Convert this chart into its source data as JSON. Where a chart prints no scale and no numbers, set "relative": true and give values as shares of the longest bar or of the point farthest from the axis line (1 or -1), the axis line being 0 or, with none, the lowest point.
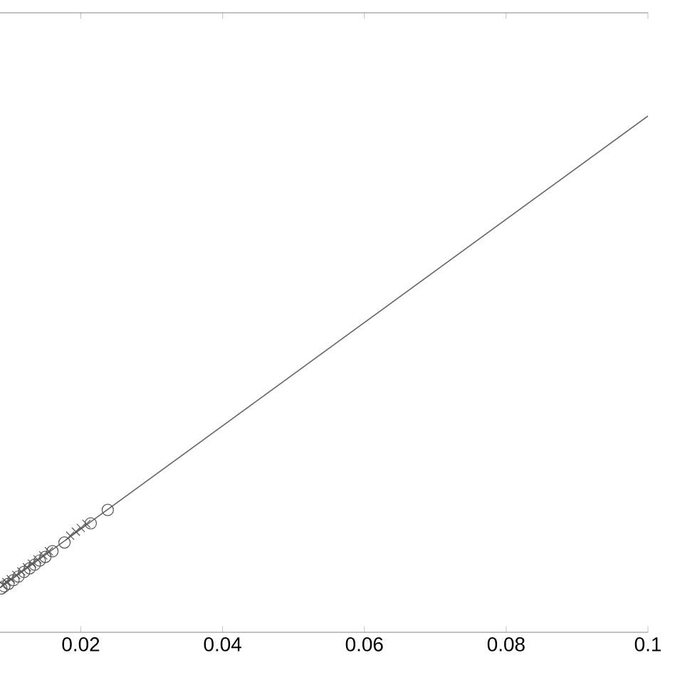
{
  "chart_data": {
    "type": "scatter",
    "relative": true,
    "xlim": [
      0.0086,
      0.1
    ],
    "xticks": [
      0.02,
      0.04,
      0.06,
      0.08,
      0.1
    ],
    "grid": false,
    "tick_labels": "x",
    "series": [
      {
        "type": "line",
        "color": "#666666",
        "line_style": "solid",
        "marker": "none",
        "x": [
          0.0086,
          0.1
        ],
        "values": [
          0.086,
          1
        ]
      },
      {
        "color": "#555555",
        "marker": "circle",
        "x": [
          0.0238,
          0.0214,
          0.0177,
          0.016,
          0.015,
          0.0142,
          0.0135,
          0.0128,
          0.012,
          0.0112,
          0.0105,
          0.0098,
          0.0092,
          0.0088
        ],
        "values": [
          0.237,
          0.211,
          0.174,
          0.157,
          0.146,
          0.139,
          0.131,
          0.124,
          0.117,
          0.108,
          0.101,
          0.094,
          0.089,
          0.085
        ]
      },
      {
        "color": "#555555",
        "marker": "cross",
        "x": [
          0.0208,
          0.02,
          0.0193,
          0.0185,
          0.0155,
          0.0147,
          0.0139,
          0.0131,
          0.0124,
          0.0116,
          0.0109,
          0.0101,
          0.0095,
          0.009
        ],
        "values": [
          0.21,
          0.202,
          0.195,
          0.187,
          0.157,
          0.149,
          0.141,
          0.133,
          0.126,
          0.118,
          0.111,
          0.103,
          0.097,
          0.092
        ]
      }
    ]
  }
}
